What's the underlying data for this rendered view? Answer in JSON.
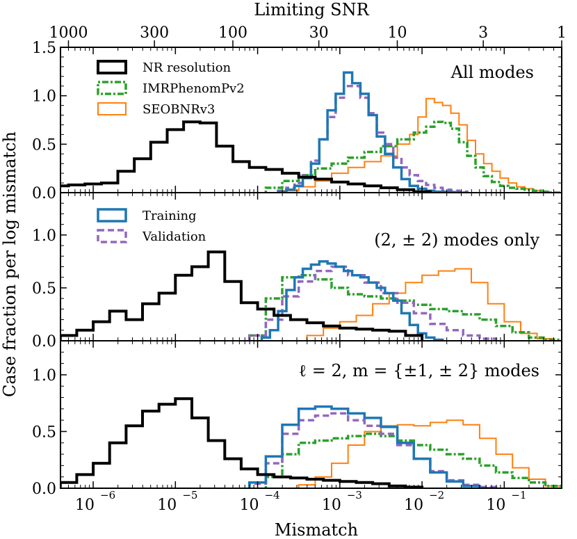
{
  "chart_data": {
    "type": "histogram",
    "xlabel": "Mismatch",
    "ylabel": "Case fraction per log mismatch",
    "top_axis": {
      "label": "Limiting SNR",
      "ticks": [
        "1000",
        "300",
        "100",
        "30",
        "10",
        "3",
        "1"
      ],
      "tick_snr": [
        1000,
        300,
        100,
        30,
        10,
        3,
        1
      ]
    },
    "xscale": "log",
    "xlim": [
      4e-07,
      0.5
    ],
    "x_ticks": [
      1e-06,
      1e-05,
      0.0001,
      0.001,
      0.01,
      0.1
    ],
    "x_tick_labels": [
      "10",
      "10",
      "10",
      "10",
      "10",
      "10"
    ],
    "x_tick_exponents": [
      "−6",
      "−5",
      "−4",
      "−3",
      "−2",
      "−1"
    ],
    "colors": {
      "NR resolution": "#000000",
      "IMRPhenomPv2": "#2ca02c",
      "SEOBNRv3": "#ff7f0e",
      "Training": "#1f77b4",
      "Validation": "#9467bd"
    },
    "panels": [
      {
        "label": "All modes",
        "ylim": [
          0,
          1.5
        ],
        "yticks": [
          "0.0",
          "0.5",
          "1.0",
          "1.5"
        ],
        "ytick_values": [
          0,
          0.5,
          1.0,
          1.5
        ],
        "legend": [
          "NR resolution",
          "IMRPhenomPv2",
          "SEOBNRv3"
        ],
        "series": [
          {
            "name": "NR resolution",
            "x": [
              -6.4,
              -6.2,
              -6.0,
              -5.8,
              -5.6,
              -5.4,
              -5.2,
              -5.0,
              -4.8,
              -4.6,
              -4.4,
              -4.2,
              -4.0,
              -3.8,
              -3.6,
              -3.4,
              -3.2,
              -3.0,
              -2.8,
              -2.6,
              -2.4,
              -2.2,
              -2.0
            ],
            "values": [
              0.07,
              0.08,
              0.09,
              0.1,
              0.22,
              0.35,
              0.52,
              0.65,
              0.73,
              0.72,
              0.48,
              0.32,
              0.26,
              0.24,
              0.2,
              0.16,
              0.14,
              0.11,
              0.09,
              0.07,
              0.05,
              0.03,
              0.01
            ]
          },
          {
            "name": "Training",
            "x": [
              -3.7,
              -3.6,
              -3.5,
              -3.4,
              -3.3,
              -3.2,
              -3.1,
              -3.0,
              -2.9,
              -2.8,
              -2.7,
              -2.6,
              -2.5,
              -2.4,
              -2.3,
              -2.2,
              -2.1,
              -2.0,
              -1.9,
              -1.8,
              -1.7,
              -1.6,
              -1.5
            ],
            "values": [
              0.01,
              0.03,
              0.07,
              0.15,
              0.3,
              0.55,
              0.85,
              1.02,
              1.24,
              1.13,
              1.02,
              0.8,
              0.58,
              0.4,
              0.26,
              0.14,
              0.07,
              0.04,
              0.02,
              0.01,
              0.01,
              0.005,
              0.0
            ]
          },
          {
            "name": "Validation",
            "x": [
              -3.7,
              -3.6,
              -3.5,
              -3.4,
              -3.3,
              -3.2,
              -3.1,
              -3.0,
              -2.9,
              -2.8,
              -2.7,
              -2.6,
              -2.5,
              -2.4,
              -2.3,
              -2.2,
              -2.1,
              -2.0,
              -1.9,
              -1.8,
              -1.7,
              -1.6,
              -1.5
            ],
            "values": [
              0.02,
              0.05,
              0.1,
              0.18,
              0.33,
              0.55,
              0.78,
              0.98,
              1.1,
              1.1,
              0.98,
              0.82,
              0.62,
              0.5,
              0.36,
              0.26,
              0.18,
              0.12,
              0.08,
              0.05,
              0.03,
              0.02,
              0.01
            ]
          },
          {
            "name": "IMRPhenomPv2",
            "x": [
              -3.8,
              -3.6,
              -3.4,
              -3.2,
              -3.0,
              -2.8,
              -2.6,
              -2.4,
              -2.2,
              -2.0,
              -1.9,
              -1.8,
              -1.7,
              -1.6,
              -1.5,
              -1.4,
              -1.3,
              -1.2,
              -1.1,
              -1.0,
              -0.9,
              -0.8,
              -0.7,
              -0.6,
              -0.5,
              -0.4
            ],
            "values": [
              0.05,
              0.12,
              0.18,
              0.25,
              0.3,
              0.36,
              0.42,
              0.48,
              0.55,
              0.62,
              0.68,
              0.73,
              0.72,
              0.66,
              0.52,
              0.38,
              0.26,
              0.17,
              0.11,
              0.07,
              0.05,
              0.04,
              0.03,
              0.02,
              0.01,
              0.0
            ]
          },
          {
            "name": "SEOBNRv3",
            "x": [
              -3.6,
              -3.4,
              -3.2,
              -3.0,
              -2.8,
              -2.6,
              -2.4,
              -2.2,
              -2.1,
              -2.0,
              -1.9,
              -1.8,
              -1.7,
              -1.6,
              -1.5,
              -1.4,
              -1.3,
              -1.2,
              -1.1,
              -1.0,
              -0.9,
              -0.8,
              -0.7,
              -0.6,
              -0.5,
              -0.4
            ],
            "values": [
              0.02,
              0.06,
              0.12,
              0.2,
              0.26,
              0.32,
              0.38,
              0.5,
              0.6,
              0.78,
              0.97,
              0.93,
              0.9,
              0.82,
              0.7,
              0.54,
              0.4,
              0.3,
              0.22,
              0.15,
              0.1,
              0.06,
              0.04,
              0.02,
              0.01,
              0.0
            ]
          }
        ]
      },
      {
        "label": "(2, ± 2) modes only",
        "ylim": [
          0,
          1.4
        ],
        "yticks": [
          "0.0",
          "0.5",
          "1.0"
        ],
        "ytick_values": [
          0,
          0.5,
          1.0
        ],
        "legend": [
          "Training",
          "Validation"
        ],
        "series": [
          {
            "name": "NR resolution",
            "x": [
              -6.5,
              -6.3,
              -6.1,
              -5.9,
              -5.7,
              -5.5,
              -5.3,
              -5.1,
              -4.9,
              -4.7,
              -4.5,
              -4.3,
              -4.1,
              -3.9,
              -3.7,
              -3.5,
              -3.3,
              -3.1,
              -2.9,
              -2.7,
              -2.5,
              -2.3,
              -2.1
            ],
            "values": [
              0.02,
              0.05,
              0.1,
              0.18,
              0.28,
              0.2,
              0.35,
              0.45,
              0.62,
              0.7,
              0.84,
              0.56,
              0.36,
              0.3,
              0.24,
              0.2,
              0.17,
              0.14,
              0.12,
              0.11,
              0.1,
              0.09,
              0.05
            ]
          },
          {
            "name": "Training",
            "x": [
              -3.9,
              -3.8,
              -3.7,
              -3.6,
              -3.5,
              -3.4,
              -3.3,
              -3.2,
              -3.1,
              -3.0,
              -2.9,
              -2.8,
              -2.7,
              -2.6,
              -2.5,
              -2.4,
              -2.3,
              -2.2,
              -2.1,
              -2.0,
              -1.9,
              -1.8
            ],
            "values": [
              0.03,
              0.1,
              0.28,
              0.48,
              0.6,
              0.68,
              0.72,
              0.75,
              0.73,
              0.7,
              0.66,
              0.62,
              0.6,
              0.55,
              0.5,
              0.45,
              0.38,
              0.26,
              0.15,
              0.07,
              0.03,
              0.01
            ]
          },
          {
            "name": "Validation",
            "x": [
              -4.0,
              -3.8,
              -3.6,
              -3.4,
              -3.2,
              -3.0,
              -2.8,
              -2.6,
              -2.4,
              -2.2,
              -2.0,
              -1.8,
              -1.6,
              -1.4,
              -1.2
            ],
            "values": [
              0.05,
              0.2,
              0.42,
              0.56,
              0.66,
              0.7,
              0.62,
              0.55,
              0.45,
              0.36,
              0.26,
              0.16,
              0.1,
              0.05,
              0.02
            ]
          },
          {
            "name": "IMRPhenomPv2",
            "x": [
              -4.0,
              -3.8,
              -3.6,
              -3.4,
              -3.2,
              -3.0,
              -2.8,
              -2.6,
              -2.4,
              -2.2,
              -2.0,
              -1.8,
              -1.6,
              -1.4,
              -1.2,
              -1.0,
              -0.8,
              -0.6,
              -0.4
            ],
            "values": [
              0.05,
              0.4,
              0.6,
              0.62,
              0.58,
              0.5,
              0.44,
              0.42,
              0.4,
              0.38,
              0.34,
              0.3,
              0.28,
              0.25,
              0.2,
              0.14,
              0.08,
              0.03,
              0.01
            ]
          },
          {
            "name": "SEOBNRv3",
            "x": [
              -3.3,
              -3.1,
              -2.9,
              -2.7,
              -2.5,
              -2.3,
              -2.1,
              -1.9,
              -1.7,
              -1.5,
              -1.3,
              -1.1,
              -0.9,
              -0.7,
              -0.5
            ],
            "values": [
              0.05,
              0.12,
              0.18,
              0.24,
              0.35,
              0.45,
              0.55,
              0.62,
              0.66,
              0.68,
              0.55,
              0.35,
              0.18,
              0.07,
              0.02
            ]
          }
        ]
      },
      {
        "label": "ℓ = 2, m = {±1, ± 2} modes",
        "ylim": [
          0,
          1.3
        ],
        "yticks": [
          "0.0",
          "0.5",
          "1.0"
        ],
        "ytick_values": [
          0,
          0.5,
          1.0
        ],
        "legend": [],
        "series": [
          {
            "name": "NR resolution",
            "x": [
              -6.5,
              -6.3,
              -6.1,
              -5.9,
              -5.7,
              -5.5,
              -5.3,
              -5.1,
              -4.9,
              -4.7,
              -4.5,
              -4.3,
              -4.1,
              -3.9,
              -3.7,
              -3.5,
              -3.3,
              -3.1,
              -2.9,
              -2.7,
              -2.5,
              -2.3,
              -2.1
            ],
            "values": [
              0.02,
              0.05,
              0.12,
              0.22,
              0.4,
              0.55,
              0.68,
              0.74,
              0.79,
              0.62,
              0.42,
              0.26,
              0.17,
              0.12,
              0.1,
              0.09,
              0.08,
              0.07,
              0.06,
              0.05,
              0.04,
              0.02,
              0.01
            ]
          },
          {
            "name": "Training",
            "x": [
              -4.0,
              -3.8,
              -3.6,
              -3.4,
              -3.2,
              -3.0,
              -2.8,
              -2.6,
              -2.4,
              -2.2,
              -2.0,
              -1.8,
              -1.6,
              -1.4,
              -1.2
            ],
            "values": [
              0.05,
              0.28,
              0.56,
              0.7,
              0.72,
              0.7,
              0.66,
              0.62,
              0.54,
              0.4,
              0.26,
              0.14,
              0.06,
              0.02,
              0.0
            ]
          },
          {
            "name": "Validation",
            "x": [
              -4.0,
              -3.8,
              -3.6,
              -3.4,
              -3.2,
              -3.0,
              -2.8,
              -2.6,
              -2.4,
              -2.2,
              -2.0,
              -1.8,
              -1.6,
              -1.4,
              -1.2
            ],
            "values": [
              0.04,
              0.22,
              0.48,
              0.6,
              0.64,
              0.66,
              0.6,
              0.55,
              0.48,
              0.38,
              0.26,
              0.15,
              0.07,
              0.03,
              0.01
            ]
          },
          {
            "name": "IMRPhenomPv2",
            "x": [
              -3.8,
              -3.6,
              -3.4,
              -3.2,
              -3.0,
              -2.8,
              -2.6,
              -2.4,
              -2.2,
              -2.0,
              -1.8,
              -1.6,
              -1.4,
              -1.2,
              -1.0,
              -0.8,
              -0.6,
              -0.4
            ],
            "values": [
              0.1,
              0.3,
              0.4,
              0.42,
              0.44,
              0.46,
              0.48,
              0.46,
              0.42,
              0.38,
              0.34,
              0.3,
              0.26,
              0.2,
              0.14,
              0.09,
              0.05,
              0.02
            ]
          },
          {
            "name": "SEOBNRv3",
            "x": [
              -3.4,
              -3.2,
              -3.0,
              -2.8,
              -2.6,
              -2.4,
              -2.2,
              -2.0,
              -1.8,
              -1.6,
              -1.4,
              -1.2,
              -1.0,
              -0.8,
              -0.6,
              -0.4
            ],
            "values": [
              0.03,
              0.1,
              0.22,
              0.38,
              0.5,
              0.55,
              0.56,
              0.55,
              0.58,
              0.6,
              0.56,
              0.44,
              0.3,
              0.18,
              0.08,
              0.02
            ]
          }
        ]
      }
    ]
  }
}
